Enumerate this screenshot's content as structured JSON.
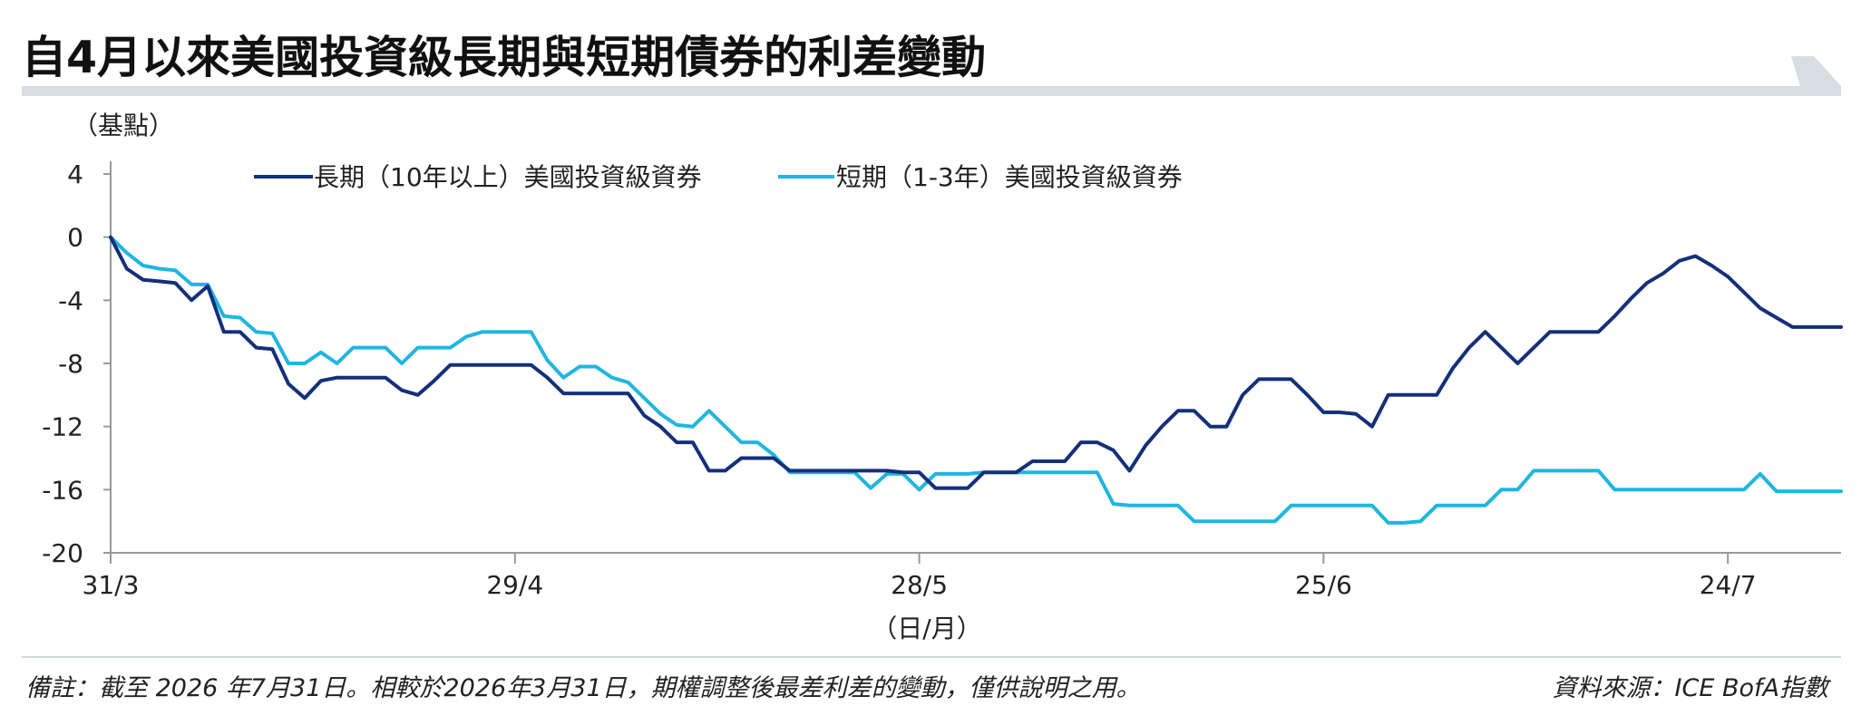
{
  "title": "自4月以來美國投資級長期與短期債券的利差變動",
  "footer": {
    "note": "備註：截至 2026 年7月31日。相較於2026年3月31日，期權調整後最差利差的變動，僅供說明之用。",
    "source": "資料來源：ICE BofA指數"
  },
  "colors": {
    "long": "#14307a",
    "short": "#1fb6e0",
    "axis": "#999999",
    "banner": "#d7dde3"
  },
  "chart_data": {
    "type": "line",
    "ylabel": "（基點）",
    "xlabel": "（日/月）",
    "ylim": [
      -20,
      4
    ],
    "yticks": [
      4,
      0,
      -4,
      -8,
      -12,
      -16,
      -20
    ],
    "ytick_labels": [
      "4",
      "0",
      "-4",
      "-8",
      "-12",
      "-16",
      "-20"
    ],
    "xlim": [
      0,
      107
    ],
    "xticks": [
      0,
      25,
      50,
      75,
      100
    ],
    "xtick_labels": [
      "31/3",
      "29/4",
      "28/5",
      "25/6",
      "24/7"
    ],
    "grid": false,
    "legend_position": "top",
    "series": [
      {
        "name": "長期（10年以上）美國投資級資券",
        "color": "#14307a",
        "x": [
          0,
          1,
          2,
          3,
          4,
          5,
          6,
          7,
          8,
          9,
          10,
          11,
          12,
          13,
          14,
          15,
          16,
          17,
          18,
          19,
          20,
          21,
          22,
          23,
          24,
          25,
          26,
          27,
          28,
          29,
          30,
          31,
          32,
          33,
          34,
          35,
          36,
          37,
          38,
          39,
          40,
          41,
          42,
          43,
          44,
          45,
          46,
          47,
          48,
          49,
          50,
          51,
          52,
          53,
          54,
          55,
          56,
          57,
          58,
          59,
          60,
          61,
          62,
          63,
          64,
          65,
          66,
          67,
          68,
          69,
          70,
          71,
          72,
          73,
          74,
          75,
          76,
          77,
          78,
          79,
          80,
          81,
          82,
          83,
          84,
          85,
          86,
          87,
          88,
          89,
          90,
          91,
          92,
          93,
          94,
          95,
          96,
          97,
          98,
          99,
          100,
          101,
          102,
          103,
          104,
          105,
          106,
          107
        ],
        "y": [
          0,
          -2,
          -2.7,
          -2.8,
          -2.9,
          -4,
          -3.1,
          -6,
          -6,
          -7,
          -7.1,
          -9.3,
          -10.2,
          -9.1,
          -8.9,
          -8.9,
          -8.9,
          -8.9,
          -9.7,
          -10,
          -9.1,
          -8.1,
          -8.1,
          -8.1,
          -8.1,
          -8.1,
          -8.1,
          -8.9,
          -9.9,
          -9.9,
          -9.9,
          -9.9,
          -9.9,
          -11.3,
          -12,
          -13,
          -13,
          -14.8,
          -14.8,
          -14,
          -14,
          -14,
          -14.8,
          -14.8,
          -14.8,
          -14.8,
          -14.8,
          -14.8,
          -14.8,
          -14.9,
          -14.9,
          -15.9,
          -15.9,
          -15.9,
          -14.9,
          -14.9,
          -14.9,
          -14.2,
          -14.2,
          -14.2,
          -13,
          -13,
          -13.5,
          -14.8,
          -13.2,
          -12,
          -11,
          -11,
          -12,
          -12,
          -10,
          -9,
          -9,
          -9,
          -10,
          -11.1,
          -11.1,
          -11.2,
          -12,
          -10,
          -10,
          -10,
          -10,
          -8.3,
          -7,
          -6,
          -7,
          -8,
          -7,
          -6,
          -6,
          -6,
          -6,
          -5,
          -3.9,
          -2.9,
          -2.3,
          -1.5,
          -1.2,
          -1.8,
          -2.5,
          -3.5,
          -4.5,
          -5.1,
          -5.7,
          -5.7,
          -5.7,
          -5.7
        ]
      },
      {
        "name": "短期（1-3年）美國投資級資券",
        "color": "#1fb6e0",
        "x": [
          0,
          1,
          2,
          3,
          4,
          5,
          6,
          7,
          8,
          9,
          10,
          11,
          12,
          13,
          14,
          15,
          16,
          17,
          18,
          19,
          20,
          21,
          22,
          23,
          24,
          25,
          26,
          27,
          28,
          29,
          30,
          31,
          32,
          33,
          34,
          35,
          36,
          37,
          38,
          39,
          40,
          41,
          42,
          43,
          44,
          45,
          46,
          47,
          48,
          49,
          50,
          51,
          52,
          53,
          54,
          55,
          56,
          57,
          58,
          59,
          60,
          61,
          62,
          63,
          64,
          65,
          66,
          67,
          68,
          69,
          70,
          71,
          72,
          73,
          74,
          75,
          76,
          77,
          78,
          79,
          80,
          81,
          82,
          83,
          84,
          85,
          86,
          87,
          88,
          89,
          90,
          91,
          92,
          93,
          94,
          95,
          96,
          97,
          98,
          99,
          100,
          101,
          102,
          103,
          104,
          105,
          106,
          107
        ],
        "y": [
          0,
          -1,
          -1.8,
          -2,
          -2.1,
          -3,
          -3,
          -5,
          -5.1,
          -6,
          -6.1,
          -8,
          -8,
          -7.3,
          -8,
          -7,
          -7,
          -7,
          -8,
          -7,
          -7,
          -7,
          -6.3,
          -6,
          -6,
          -6,
          -6,
          -7.8,
          -8.9,
          -8.2,
          -8.2,
          -8.9,
          -9.2,
          -10.2,
          -11.2,
          -11.9,
          -12,
          -11,
          -12,
          -13,
          -13,
          -13.8,
          -14.9,
          -14.9,
          -14.9,
          -14.9,
          -14.9,
          -15.9,
          -15,
          -15,
          -16,
          -15,
          -15,
          -15,
          -14.9,
          -14.9,
          -14.9,
          -14.9,
          -14.9,
          -14.9,
          -14.9,
          -14.9,
          -16.9,
          -17,
          -17,
          -17,
          -17,
          -18,
          -18,
          -18,
          -18,
          -18,
          -18,
          -17,
          -17,
          -17,
          -17,
          -17,
          -17,
          -18.1,
          -18.1,
          -18,
          -17,
          -17,
          -17,
          -17,
          -16,
          -16,
          -14.8,
          -14.8,
          -14.8,
          -14.8,
          -14.8,
          -16,
          -16,
          -16,
          -16,
          -16,
          -16,
          -16,
          -16,
          -16,
          -15,
          -16.1,
          -16.1,
          -16.1,
          -16.1,
          -16.1
        ]
      }
    ]
  }
}
